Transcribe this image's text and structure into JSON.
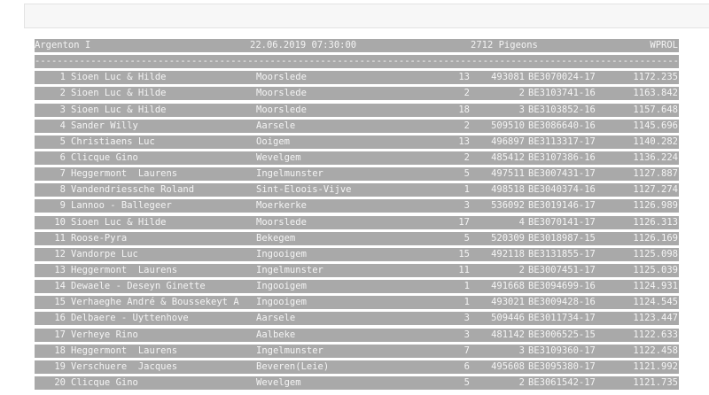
{
  "header": {
    "race": "Argenton I",
    "datetime": "22.06.2019 07:30:00",
    "pigeons": "2712 Pigeons",
    "code": "WPROL"
  },
  "separator": "------------------------------------------------------------------------------------------------------------------------",
  "rows": [
    {
      "rank": "1",
      "name": "Sioen Luc & Hilde",
      "city": "Moorslede",
      "count": "13",
      "num": "493081",
      "ring": "BE3070024-17",
      "speed": "1172.235"
    },
    {
      "rank": "2",
      "name": "Sioen Luc & Hilde",
      "city": "Moorslede",
      "count": "2",
      "num": "2",
      "ring": "BE3103741-16",
      "speed": "1163.842"
    },
    {
      "rank": "3",
      "name": "Sioen Luc & Hilde",
      "city": "Moorslede",
      "count": "18",
      "num": "3",
      "ring": "BE3103852-16",
      "speed": "1157.648"
    },
    {
      "rank": "4",
      "name": "Sander Willy",
      "city": "Aarsele",
      "count": "2",
      "num": "509510",
      "ring": "BE3086640-16",
      "speed": "1145.696"
    },
    {
      "rank": "5",
      "name": "Christiaens Luc",
      "city": "Ooigem",
      "count": "13",
      "num": "496897",
      "ring": "BE3113317-17",
      "speed": "1140.282"
    },
    {
      "rank": "6",
      "name": "Clicque Gino",
      "city": "Wevelgem",
      "count": "2",
      "num": "485412",
      "ring": "BE3107386-16",
      "speed": "1136.224"
    },
    {
      "rank": "7",
      "name": "Heggermont  Laurens",
      "city": "Ingelmunster",
      "count": "5",
      "num": "497511",
      "ring": "BE3007431-17",
      "speed": "1127.887"
    },
    {
      "rank": "8",
      "name": "Vandendriessche Roland",
      "city": "Sint-Eloois-Vijve",
      "count": "1",
      "num": "498518",
      "ring": "BE3040374-16",
      "speed": "1127.274"
    },
    {
      "rank": "9",
      "name": "Lannoo - Ballegeer",
      "city": "Moerkerke",
      "count": "3",
      "num": "536092",
      "ring": "BE3019146-17",
      "speed": "1126.989"
    },
    {
      "rank": "10",
      "name": "Sioen Luc & Hilde",
      "city": "Moorslede",
      "count": "17",
      "num": "4",
      "ring": "BE3070141-17",
      "speed": "1126.313"
    },
    {
      "rank": "11",
      "name": "Roose-Pyra",
      "city": "Bekegem",
      "count": "5",
      "num": "520309",
      "ring": "BE3018987-15",
      "speed": "1126.169"
    },
    {
      "rank": "12",
      "name": "Vandorpe Luc",
      "city": "Ingooigem",
      "count": "15",
      "num": "492118",
      "ring": "BE3131855-17",
      "speed": "1125.098"
    },
    {
      "rank": "13",
      "name": "Heggermont  Laurens",
      "city": "Ingelmunster",
      "count": "11",
      "num": "2",
      "ring": "BE3007451-17",
      "speed": "1125.039"
    },
    {
      "rank": "14",
      "name": "Dewaele - Deseyn Ginette",
      "city": "Ingooigem",
      "count": "1",
      "num": "491668",
      "ring": "BE3094699-16",
      "speed": "1124.931"
    },
    {
      "rank": "15",
      "name": "Verhaeghe André & Boussekeyt A",
      "city": "Ingooigem",
      "count": "1",
      "num": "493021",
      "ring": "BE3009428-16",
      "speed": "1124.545"
    },
    {
      "rank": "16",
      "name": "Delbaere - Uyttenhove",
      "city": "Aarsele",
      "count": "3",
      "num": "509446",
      "ring": "BE3011734-17",
      "speed": "1123.447"
    },
    {
      "rank": "17",
      "name": "Verheye Rino",
      "city": "Aalbeke",
      "count": "3",
      "num": "481142",
      "ring": "BE3006525-15",
      "speed": "1122.633"
    },
    {
      "rank": "18",
      "name": "Heggermont  Laurens",
      "city": "Ingelmunster",
      "count": "7",
      "num": "3",
      "ring": "BE3109360-17",
      "speed": "1122.458"
    },
    {
      "rank": "19",
      "name": "Verschuere  Jacques",
      "city": "Beveren(Leie)",
      "count": "6",
      "num": "495608",
      "ring": "BE3095380-17",
      "speed": "1121.992"
    },
    {
      "rank": "20",
      "name": "Clicque Gino",
      "city": "Wevelgem",
      "count": "5",
      "num": "2",
      "ring": "BE3061542-17",
      "speed": "1121.735"
    }
  ]
}
